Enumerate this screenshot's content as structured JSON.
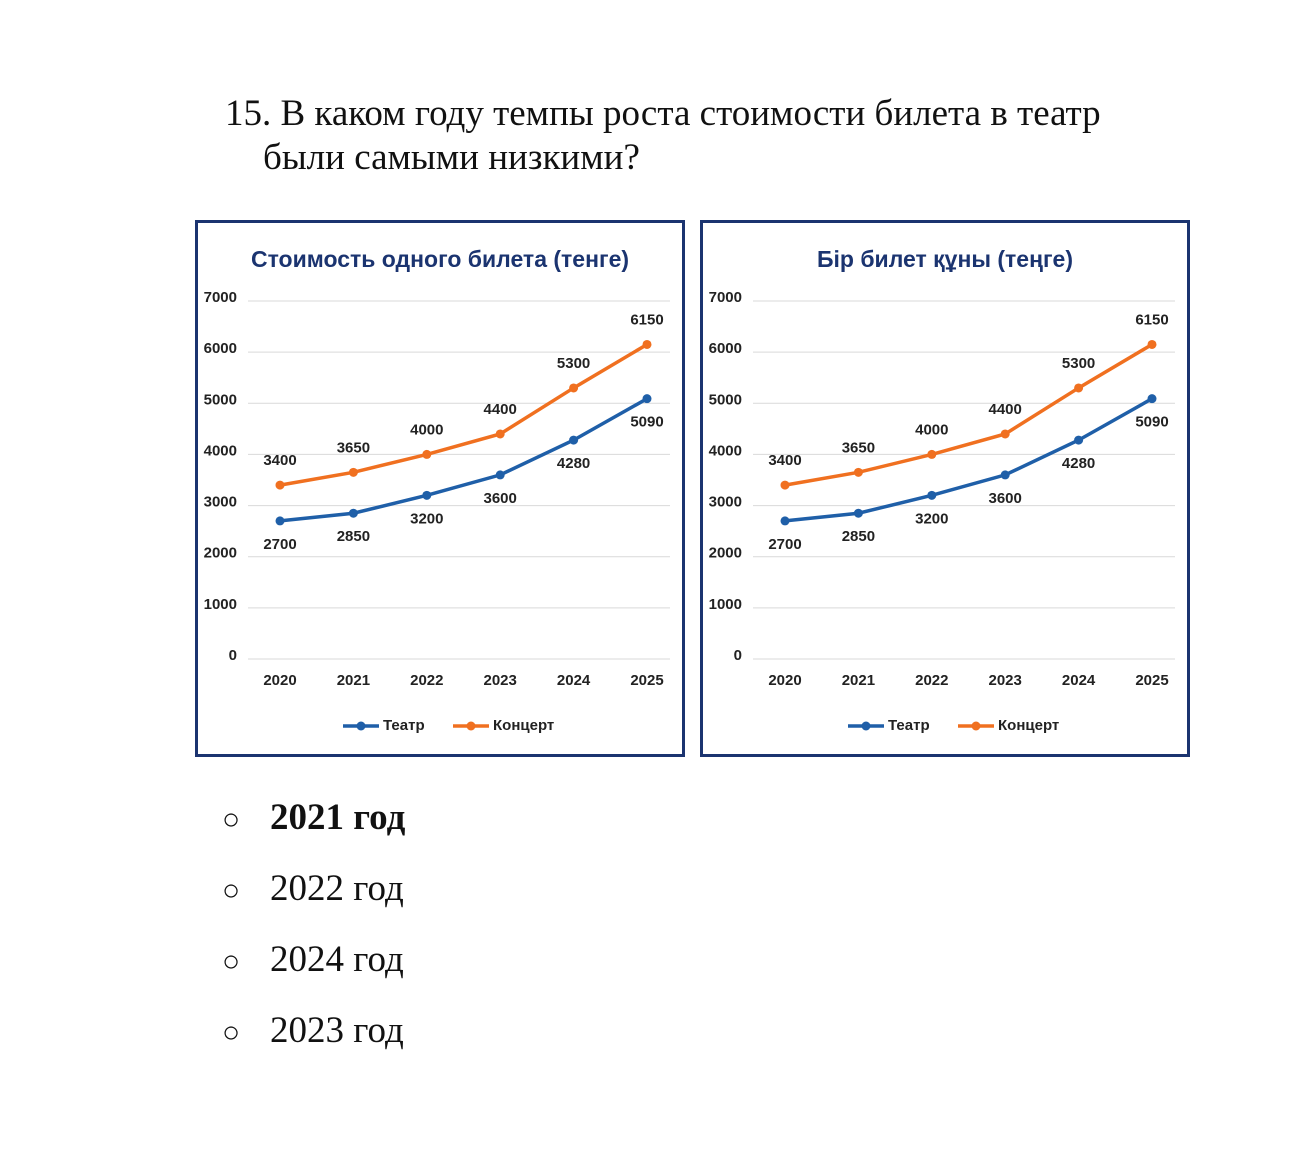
{
  "question": "15. В каком году темпы роста стоимости билета в театр были самыми низкими?",
  "chart_data": [
    {
      "type": "line",
      "title": "Стоимость одного билета (тенге)",
      "categories": [
        "2020",
        "2021",
        "2022",
        "2023",
        "2024",
        "2025"
      ],
      "series": [
        {
          "name": "Театр",
          "color": "#1f5fa8",
          "values": [
            2700,
            2850,
            3200,
            3600,
            4280,
            5090
          ]
        },
        {
          "name": "Концерт",
          "color": "#f07020",
          "values": [
            3400,
            3650,
            4000,
            4400,
            5300,
            6150
          ]
        }
      ],
      "ylim": [
        0,
        7000
      ],
      "yticks": [
        0,
        1000,
        2000,
        3000,
        4000,
        5000,
        6000,
        7000
      ],
      "grid": true,
      "legend": "bottom"
    },
    {
      "type": "line",
      "title": "Бір билет құны (теңге)",
      "categories": [
        "2020",
        "2021",
        "2022",
        "2023",
        "2024",
        "2025"
      ],
      "series": [
        {
          "name": "Театр",
          "color": "#1f5fa8",
          "values": [
            2700,
            2850,
            3200,
            3600,
            4280,
            5090
          ]
        },
        {
          "name": "Концерт",
          "color": "#f07020",
          "values": [
            3400,
            3650,
            4000,
            4400,
            5300,
            6150
          ]
        }
      ],
      "ylim": [
        0,
        7000
      ],
      "yticks": [
        0,
        1000,
        2000,
        3000,
        4000,
        5000,
        6000,
        7000
      ],
      "grid": true,
      "legend": "bottom"
    }
  ],
  "options": [
    "2021 год",
    "2022 год",
    "2024 год",
    "2023 год"
  ],
  "selected": 0
}
